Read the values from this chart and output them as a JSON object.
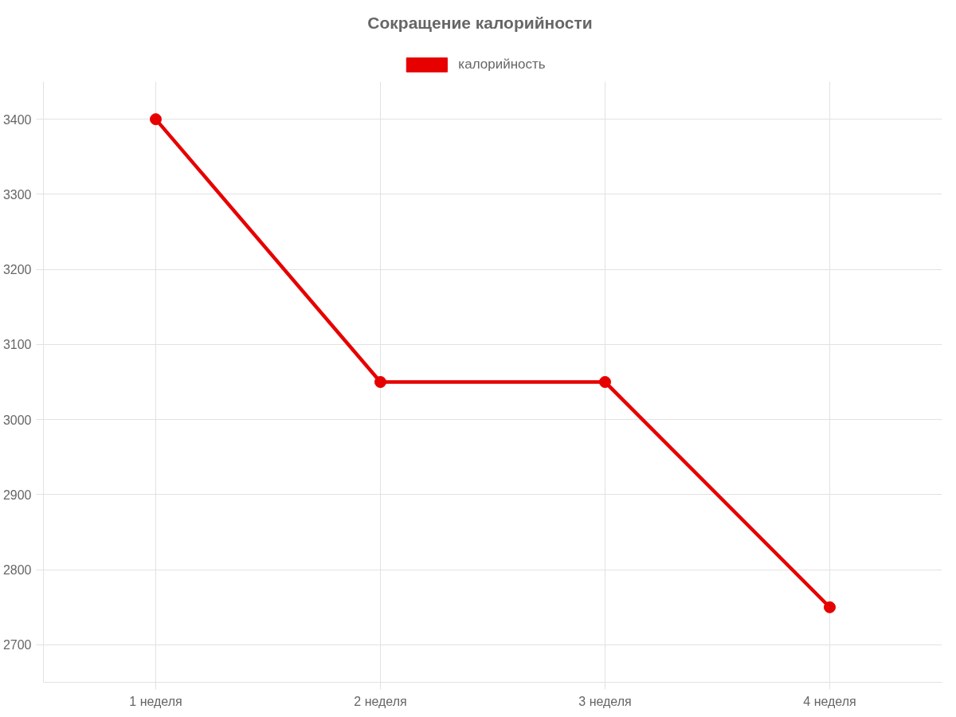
{
  "chart_data": {
    "type": "line",
    "title": "Сокращение калорийности",
    "categories": [
      "1 неделя",
      "2 неделя",
      "3 неделя",
      "4 неделя"
    ],
    "series": [
      {
        "name": "калорийность",
        "color": "#e60000",
        "values": [
          3400,
          3050,
          3050,
          2750
        ]
      }
    ],
    "ylim": [
      2650,
      3450
    ],
    "yticks": [
      2700,
      2800,
      2900,
      3000,
      3100,
      3200,
      3300,
      3400
    ],
    "grid": true,
    "legend": "top",
    "marker": "circle",
    "line_style": "solid"
  }
}
